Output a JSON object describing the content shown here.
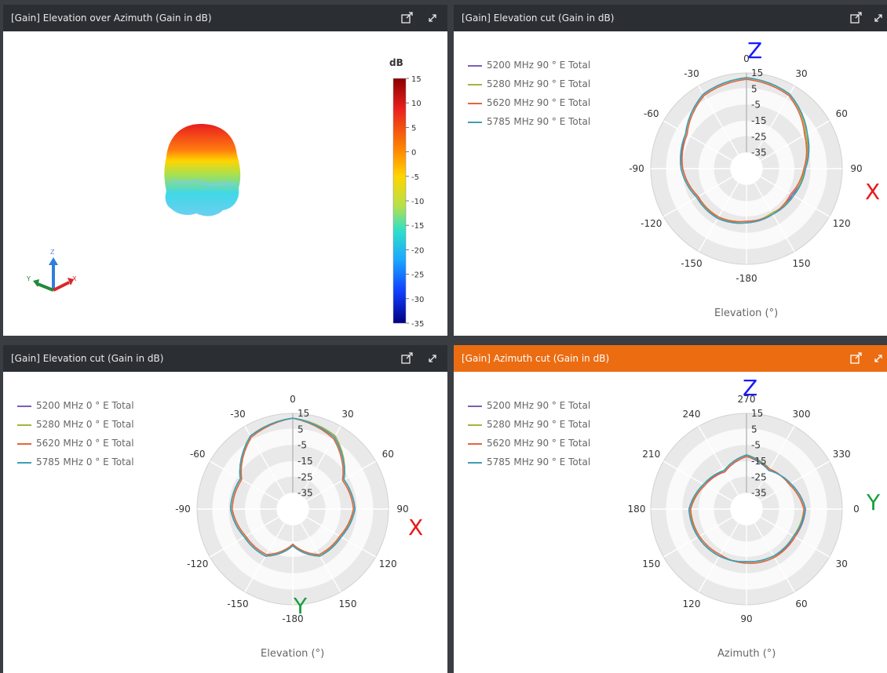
{
  "colors": {
    "violet": "#7c5fb6",
    "olive": "#a7b43a",
    "orange": "#e2663a",
    "teal": "#3d9fb7",
    "accent": "#ec6c12",
    "z": "#1a1aff",
    "x": "#e81a1a",
    "y": "#18a040"
  },
  "panels": [
    {
      "title": "[Gain] Elevation over Azimuth (Gain in dB)",
      "active": false,
      "icons": [
        "popout-icon",
        "expand-icon"
      ],
      "colorbar": {
        "unit": "dB",
        "ticks": [
          "15",
          "10",
          "5",
          "0",
          "-5",
          "-10",
          "-15",
          "-20",
          "-25",
          "-30",
          "-35"
        ]
      },
      "axis_labels": {
        "z": "Z",
        "y": "Y",
        "x": "X"
      }
    },
    {
      "title": "[Gain] Elevation cut (Gain in dB)",
      "active": false,
      "icons": [
        "popout-icon",
        "expand-icon"
      ],
      "legend": [
        "5200 MHz 90 ° E Total",
        "5280 MHz 90 ° E Total",
        "5620 MHz 90 ° E Total",
        "5785 MHz 90 ° E Total"
      ],
      "axis_title": "Elevation (°)",
      "overlay": {
        "top": "Z",
        "right": "X"
      }
    },
    {
      "title": "[Gain] Elevation cut (Gain in dB)",
      "active": false,
      "icons": [
        "popout-icon",
        "expand-icon"
      ],
      "legend": [
        "5200 MHz 0 ° E Total",
        "5280 MHz 0 ° E Total",
        "5620 MHz 0 ° E Total",
        "5785 MHz 0 ° E Total"
      ],
      "axis_title": "Elevation (°)",
      "overlay": {
        "right": "X",
        "bottom": "Y"
      }
    },
    {
      "title": "[Gain] Azimuth cut (Gain in dB)",
      "active": true,
      "icons": [
        "popout-icon",
        "expand-icon"
      ],
      "legend": [
        "5200 MHz 90 ° E Total",
        "5280 MHz 90 ° E Total",
        "5620 MHz 90 ° E Total",
        "5785 MHz 90 ° E Total"
      ],
      "axis_title": "Azimuth (°)",
      "overlay": {
        "top": "Z",
        "right": "Y"
      }
    }
  ],
  "chart_data": [
    {
      "type": "heatmap",
      "title": "[Gain] Elevation over Azimuth (Gain in dB)",
      "colorbar": {
        "label": "dB",
        "range": [
          -35,
          15
        ],
        "ticks": [
          15,
          10,
          5,
          0,
          -5,
          -10,
          -15,
          -20,
          -25,
          -30,
          -35
        ]
      }
    },
    {
      "type": "polar",
      "title": "[Gain] Elevation cut (Gain in dB)",
      "angle_ticks": [
        "0",
        "30",
        "60",
        "90",
        "120",
        "150",
        "-180",
        "-150",
        "-120",
        "-90",
        "-60",
        "-30"
      ],
      "radial_range": [
        -45,
        15
      ],
      "radial_ticks": [
        "15",
        "5",
        "-5",
        "-15",
        "-25",
        "-35"
      ],
      "theta": [
        0,
        30,
        60,
        90,
        120,
        150,
        180,
        210,
        240,
        270,
        300,
        330
      ],
      "series": [
        {
          "name": "5200 MHz 90 ° E Total",
          "r": [
            12,
            9,
            -2,
            -8,
            -12,
            -12,
            -11,
            -9,
            -10,
            -5,
            -1,
            9
          ]
        },
        {
          "name": "5280 MHz 90 ° E Total",
          "r": [
            12,
            9,
            -2,
            -9,
            -11,
            -13,
            -11,
            -10,
            -9,
            -4,
            -1,
            9
          ]
        },
        {
          "name": "5620 MHz 90 ° E Total",
          "r": [
            11,
            8,
            -3,
            -9,
            -13,
            -12,
            -12,
            -10,
            -10,
            -5,
            -2,
            8
          ]
        },
        {
          "name": "5785 MHz 90 ° E Total",
          "r": [
            12,
            9,
            -1,
            -8,
            -11,
            -12,
            -11,
            -9,
            -9,
            -4,
            -1,
            9
          ]
        }
      ]
    },
    {
      "type": "polar",
      "title": "[Gain] Elevation cut (Gain in dB)",
      "angle_ticks": [
        "0",
        "30",
        "60",
        "90",
        "120",
        "150",
        "-180",
        "-150",
        "-120",
        "-90",
        "-60",
        "-30"
      ],
      "radial_range": [
        -45,
        15
      ],
      "radial_ticks": [
        "15",
        "5",
        "-5",
        "-15",
        "-25",
        "-35"
      ],
      "theta": [
        0,
        30,
        60,
        90,
        120,
        150,
        180,
        210,
        240,
        270,
        300,
        330
      ],
      "series": [
        {
          "name": "5200 MHz 0 ° E Total",
          "r": [
            12,
            8,
            -8,
            -6,
            -10,
            -11,
            -22,
            -11,
            -10,
            -6,
            -7,
            8
          ]
        },
        {
          "name": "5280 MHz 0 ° E Total",
          "r": [
            12,
            8,
            -8,
            -6,
            -11,
            -11,
            -22,
            -11,
            -10,
            -6,
            -7,
            8
          ]
        },
        {
          "name": "5620 MHz 0 ° E Total",
          "r": [
            12,
            6,
            -9,
            -7,
            -11,
            -12,
            -23,
            -12,
            -11,
            -7,
            -8,
            7
          ]
        },
        {
          "name": "5785 MHz 0 ° E Total",
          "r": [
            12,
            7,
            -8,
            -6,
            -10,
            -11,
            -22,
            -11,
            -10,
            -6,
            -7,
            8
          ]
        }
      ]
    },
    {
      "type": "polar",
      "title": "[Gain] Azimuth cut (Gain in dB)",
      "angle_ticks": [
        "270",
        "300",
        "330",
        "0",
        "30",
        "60",
        "90",
        "120",
        "150",
        "180",
        "210",
        "240"
      ],
      "radial_range": [
        -45,
        15
      ],
      "radial_ticks": [
        "15",
        "5",
        "-5",
        "-15",
        "-25",
        "-35"
      ],
      "theta": [
        270,
        300,
        330,
        0,
        30,
        60,
        90,
        120,
        150,
        180,
        210,
        240
      ],
      "series": [
        {
          "name": "5200 MHz 90 ° E Total",
          "r": [
            -12,
            -17,
            -13,
            -8,
            -10,
            -11,
            -12,
            -11,
            -10,
            -9,
            -14,
            -18
          ]
        },
        {
          "name": "5280 MHz 90 ° E Total",
          "r": [
            -11,
            -16,
            -14,
            -9,
            -11,
            -11,
            -12,
            -11,
            -10,
            -10,
            -14,
            -17
          ]
        },
        {
          "name": "5620 MHz 90 ° E Total",
          "r": [
            -12,
            -16,
            -14,
            -9,
            -10,
            -10,
            -11,
            -12,
            -11,
            -10,
            -15,
            -18
          ]
        },
        {
          "name": "5785 MHz 90 ° E Total",
          "r": [
            -11,
            -17,
            -13,
            -8,
            -11,
            -11,
            -12,
            -11,
            -10,
            -9,
            -14,
            -17
          ]
        }
      ]
    }
  ]
}
